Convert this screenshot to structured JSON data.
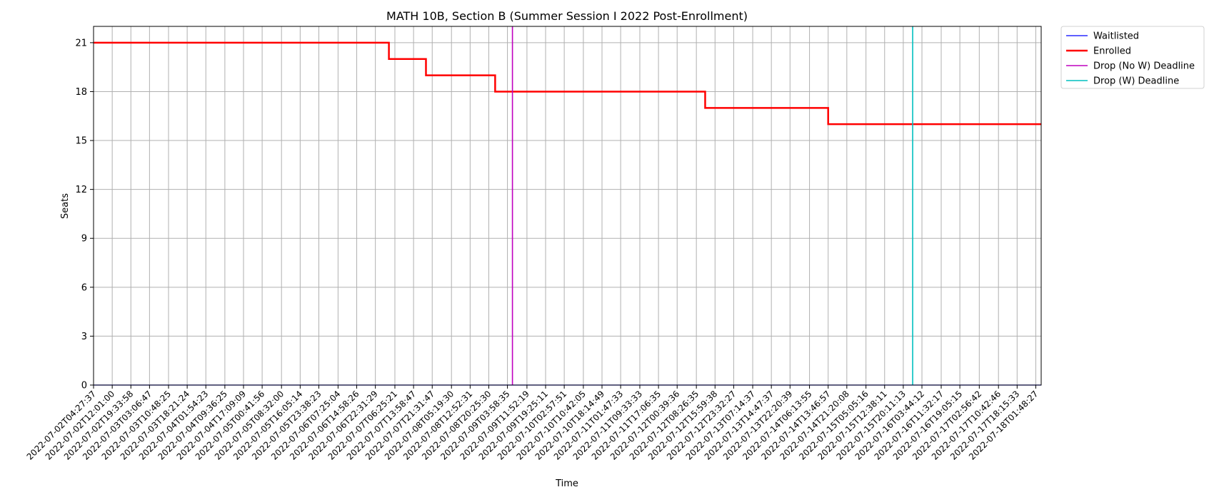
{
  "chart_data": {
    "type": "line",
    "title": "MATH 10B, Section B (Summer Session I 2022 Post-Enrollment)",
    "xlabel": "Time",
    "ylabel": "Seats",
    "ylim": [
      0,
      22
    ],
    "yticks": [
      0,
      3,
      6,
      9,
      12,
      15,
      18,
      21
    ],
    "grid": true,
    "legend_position": "outside-top-right",
    "x_start": "2022-07-02T04:27:37",
    "x_end": "2022-07-18T04:00:00",
    "xtick_labels": [
      "2022-07-02T04:27:37",
      "2022-07-02T12:01:00",
      "2022-07-02T19:33:58",
      "2022-07-03T03:06:47",
      "2022-07-03T10:48:25",
      "2022-07-03T18:21:24",
      "2022-07-04T01:54:23",
      "2022-07-04T09:36:25",
      "2022-07-04T17:09:09",
      "2022-07-05T00:41:56",
      "2022-07-05T08:32:00",
      "2022-07-05T16:05:14",
      "2022-07-05T23:38:23",
      "2022-07-06T07:25:04",
      "2022-07-06T14:58:26",
      "2022-07-06T22:31:29",
      "2022-07-07T06:25:21",
      "2022-07-07T13:58:47",
      "2022-07-07T21:31:47",
      "2022-07-08T05:19:30",
      "2022-07-08T12:52:31",
      "2022-07-08T20:25:30",
      "2022-07-09T03:58:35",
      "2022-07-09T11:52:19",
      "2022-07-09T19:25:11",
      "2022-07-10T02:57:51",
      "2022-07-10T10:42:05",
      "2022-07-10T18:14:49",
      "2022-07-11T01:47:33",
      "2022-07-11T09:33:33",
      "2022-07-11T17:06:35",
      "2022-07-12T00:39:36",
      "2022-07-12T08:26:35",
      "2022-07-12T15:59:38",
      "2022-07-12T23:32:27",
      "2022-07-13T07:14:37",
      "2022-07-13T14:47:37",
      "2022-07-13T22:20:39",
      "2022-07-14T06:13:55",
      "2022-07-14T13:46:57",
      "2022-07-14T21:20:08",
      "2022-07-15T05:05:16",
      "2022-07-15T12:38:11",
      "2022-07-15T20:11:13",
      "2022-07-16T03:44:12",
      "2022-07-16T11:32:17",
      "2022-07-16T19:05:15",
      "2022-07-17T02:56:42",
      "2022-07-17T10:42:46",
      "2022-07-17T18:15:33",
      "2022-07-18T01:48:27"
    ],
    "series": [
      {
        "name": "Waitlisted",
        "color": "#0000ff",
        "line_width": "thin",
        "points": [
          [
            "2022-07-02T04:27:37",
            0
          ],
          [
            "2022-07-18T04:00:00",
            0
          ]
        ]
      },
      {
        "name": "Enrolled",
        "color": "#ff0000",
        "line_width": "thick",
        "step": true,
        "points": [
          [
            "2022-07-02T04:27:37",
            21
          ],
          [
            "2022-07-07T04:00:00",
            20
          ],
          [
            "2022-07-07T19:00:00",
            19
          ],
          [
            "2022-07-08T23:00:00",
            18
          ],
          [
            "2022-07-12T12:00:00",
            17
          ],
          [
            "2022-07-14T13:46:57",
            16
          ],
          [
            "2022-07-18T04:00:00",
            16
          ]
        ]
      }
    ],
    "vlines": [
      {
        "name": "Drop (No W) Deadline",
        "color": "#bf00bf",
        "x": "2022-07-09T06:00:00"
      },
      {
        "name": "Drop (W) Deadline",
        "color": "#00bfbf",
        "x": "2022-07-15T23:59:00"
      }
    ]
  }
}
